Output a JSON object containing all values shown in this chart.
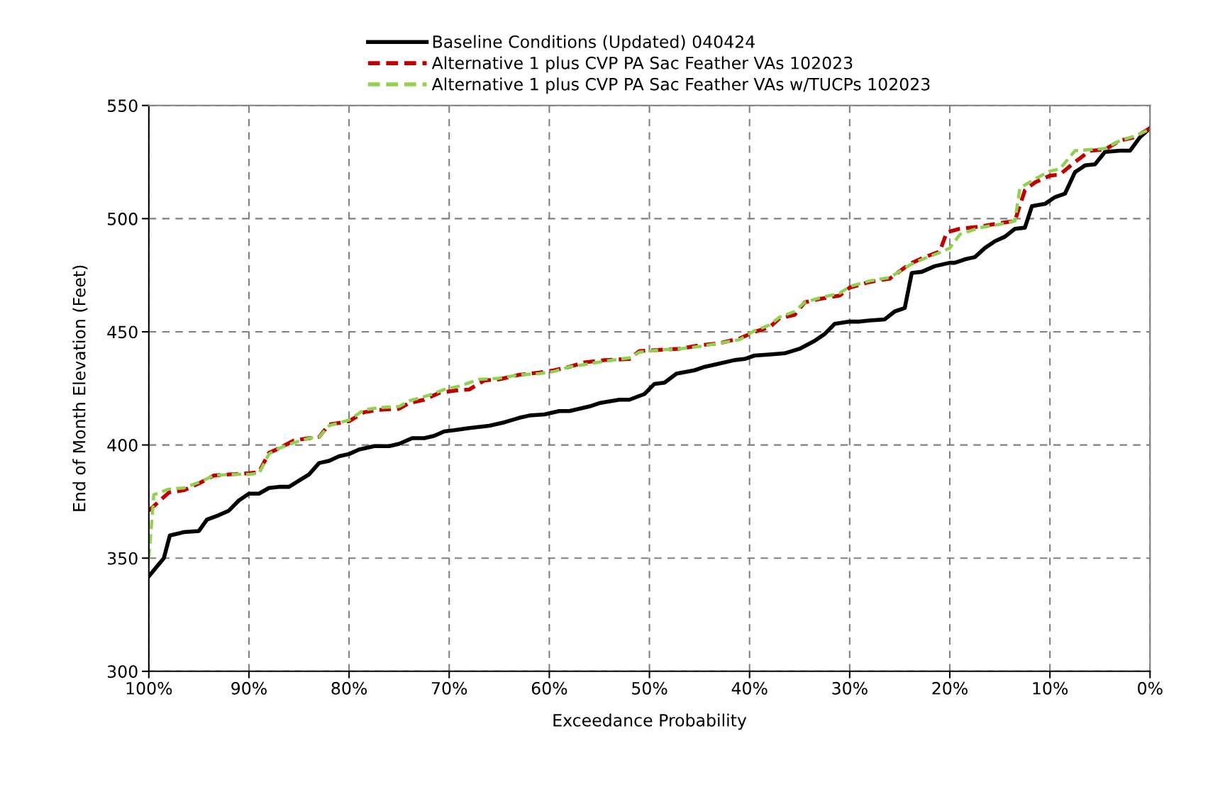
{
  "chart_data": {
    "type": "line",
    "xlabel": "Exceedance Probability",
    "ylabel": "End of Month Elevation (Feet)",
    "xlim": [
      100,
      0
    ],
    "ylim": [
      300,
      550
    ],
    "xticks": [
      {
        "value": 100,
        "label": "100%"
      },
      {
        "value": 90,
        "label": "90%"
      },
      {
        "value": 80,
        "label": "80%"
      },
      {
        "value": 70,
        "label": "70%"
      },
      {
        "value": 60,
        "label": "60%"
      },
      {
        "value": 50,
        "label": "50%"
      },
      {
        "value": 40,
        "label": "40%"
      },
      {
        "value": 30,
        "label": "30%"
      },
      {
        "value": 20,
        "label": "20%"
      },
      {
        "value": 10,
        "label": "10%"
      },
      {
        "value": 0,
        "label": "0%"
      }
    ],
    "yticks": [
      300,
      350,
      400,
      450,
      500,
      550
    ],
    "grid": true,
    "legend": "top",
    "series": [
      {
        "name": "Baseline Conditions (Updated) 040424",
        "color": "#000000",
        "line_style": "solid",
        "x": [
          100,
          98.5,
          97.9,
          96.5,
          95,
          94.2,
          93,
          92,
          91,
          90,
          89,
          88,
          87,
          86,
          84,
          83,
          82,
          81,
          80,
          79,
          77.5,
          76,
          75,
          73.7,
          72.5,
          71.5,
          70.5,
          69.5,
          68,
          66,
          64.5,
          63,
          62,
          60.5,
          59,
          58,
          57,
          56,
          55,
          53,
          52,
          50.5,
          49.5,
          48.5,
          47.3,
          45.5,
          44.5,
          43,
          41.5,
          40.5,
          39.5,
          38,
          36.5,
          35,
          33.5,
          32.5,
          31.5,
          30,
          29,
          28,
          26.5,
          25.5,
          24.5,
          23.8,
          22.8,
          21.5,
          20,
          19.5,
          18.5,
          17.5,
          16.5,
          15.5,
          14.5,
          13.5,
          12.5,
          11.8,
          10.5,
          9.5,
          8.5,
          7.5,
          6.5,
          5.5,
          4.5,
          3,
          2,
          1,
          0
        ],
        "values": [
          342,
          350,
          360,
          361.5,
          362,
          367,
          369,
          371,
          375.5,
          378.5,
          378.5,
          381,
          381.5,
          381.5,
          387,
          392,
          393,
          395,
          396,
          398,
          399.5,
          399.5,
          400.5,
          403,
          403,
          404,
          406,
          406.5,
          407.5,
          408.5,
          410,
          412,
          413,
          413.5,
          415,
          415,
          416,
          417,
          418.5,
          420,
          420,
          422.5,
          427,
          427.5,
          431.5,
          433,
          434.5,
          436,
          437.5,
          438,
          439.5,
          440,
          440.5,
          442.5,
          446,
          449,
          453.5,
          454.5,
          454.5,
          455,
          455.5,
          459,
          460.5,
          476,
          476.5,
          479,
          480.5,
          480.5,
          482,
          483,
          487,
          490,
          492,
          495.5,
          496,
          505.5,
          506.5,
          509.5,
          511,
          520.5,
          523.5,
          524,
          529.5,
          530,
          530,
          536,
          540
        ]
      },
      {
        "name": "Alternative 1 plus CVP PA Sac Feather VAs 102023",
        "color": "#c00000",
        "line_style": "dashed",
        "x": [
          100,
          99,
          98,
          96.5,
          95,
          93.5,
          92,
          90,
          89,
          88,
          87,
          85.5,
          84,
          83,
          82,
          80,
          78.5,
          77,
          75,
          74,
          72.5,
          71,
          69.5,
          68,
          66.5,
          65,
          63,
          61,
          59.5,
          58,
          56.5,
          54.5,
          52,
          51,
          49,
          47,
          45,
          43,
          41,
          39.5,
          38,
          37,
          35.5,
          34.5,
          33,
          31,
          30,
          28,
          26,
          24,
          22.5,
          21,
          20.3,
          19,
          17,
          15,
          13.5,
          12.5,
          11.5,
          10,
          9,
          7.5,
          6,
          4.5,
          3,
          1.5,
          0
        ],
        "values": [
          371,
          375,
          379,
          380,
          383,
          386.5,
          387,
          387.5,
          388,
          396.5,
          398.5,
          402,
          403,
          403.5,
          409,
          410.5,
          414.5,
          415.5,
          416,
          418.5,
          420,
          423,
          424,
          424.5,
          428.5,
          429,
          431,
          432,
          433,
          434.5,
          436.5,
          437.5,
          438,
          441.5,
          442,
          442.5,
          444,
          445,
          447,
          450,
          452,
          456,
          457.5,
          463,
          464.5,
          466,
          469.5,
          472,
          473.5,
          480,
          483,
          485.5,
          494,
          495.5,
          496.5,
          498,
          499,
          512.5,
          516,
          519,
          519.5,
          525,
          530,
          530.5,
          534.5,
          536,
          540
        ]
      },
      {
        "name": "Alternative 1 plus CVP PA Sac Feather VAs w/TUCPs 102023",
        "color": "#92d050",
        "line_style": "dashed",
        "x": [
          100,
          99.5,
          98,
          96.5,
          95,
          93.5,
          92,
          90,
          89,
          88,
          87,
          85.5,
          84,
          83,
          82,
          80,
          78.5,
          77,
          75,
          74,
          72,
          70.5,
          69,
          67,
          65,
          63,
          61,
          59.5,
          58,
          56.5,
          54.5,
          52,
          51,
          49,
          47,
          45,
          43,
          41,
          39.5,
          38,
          37,
          35.5,
          34.5,
          33,
          31,
          30,
          28,
          26,
          24,
          22.5,
          21,
          20,
          19,
          17,
          15,
          13.5,
          13,
          11.5,
          10,
          9,
          7.5,
          6,
          4.5,
          3,
          1.5,
          0
        ],
        "values": [
          350,
          378,
          380.5,
          381,
          383.5,
          386.5,
          387,
          387,
          387.5,
          396,
          398.5,
          401,
          403,
          403.5,
          408.5,
          411,
          415.5,
          416.5,
          417,
          419.5,
          422,
          424.5,
          426,
          429,
          429.5,
          431,
          431.5,
          432.5,
          434.5,
          435.5,
          437,
          438.5,
          441,
          442,
          442.5,
          443.5,
          445,
          446.5,
          450.5,
          453,
          456.5,
          459,
          463,
          465,
          467,
          470,
          472.5,
          474,
          479.5,
          482.5,
          485,
          487,
          493,
          496,
          497.5,
          499,
          513.5,
          517.5,
          521,
          522,
          530,
          530.5,
          531,
          534.5,
          536.5,
          539.5
        ]
      }
    ]
  }
}
